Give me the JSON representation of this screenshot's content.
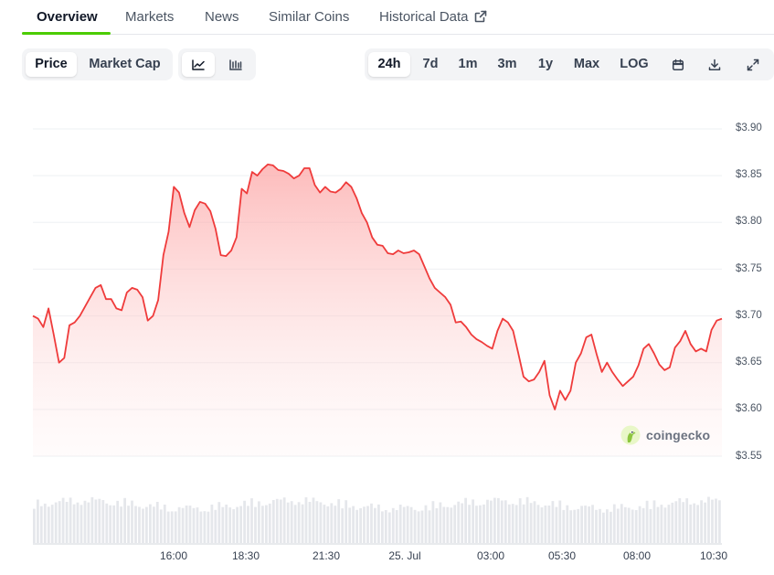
{
  "tabs": [
    {
      "label": "Overview",
      "active": true
    },
    {
      "label": "Markets"
    },
    {
      "label": "News"
    },
    {
      "label": "Similar Coins"
    },
    {
      "label": "Historical Data",
      "icon": "external-link-icon"
    }
  ],
  "metric_toggle": {
    "options": [
      "Price",
      "Market Cap"
    ],
    "selected": "Price"
  },
  "chart_style": {
    "options": [
      {
        "icon": "line-chart-icon",
        "selected": true
      },
      {
        "icon": "candlestick-icon"
      }
    ]
  },
  "time_ranges": {
    "options": [
      "24h",
      "7d",
      "1m",
      "3m",
      "1y",
      "Max",
      "LOG"
    ],
    "selected": "24h"
  },
  "tool_icons": [
    "calendar-icon",
    "download-icon",
    "expand-icon"
  ],
  "watermark": "coingecko",
  "colors": {
    "line": "#ef3b3b",
    "fill_top": "#fca5a5",
    "accent": "#4bcc00",
    "volume": "#e5e7eb"
  },
  "chart_data": {
    "type": "area",
    "title": "",
    "xlabel": "",
    "ylabel": "",
    "y_ticks": [
      3.9,
      3.85,
      3.8,
      3.75,
      3.7,
      3.65,
      3.6,
      3.55
    ],
    "y_tick_labels": [
      "$3.90",
      "$3.85",
      "$3.80",
      "$3.75",
      "$3.70",
      "$3.65",
      "$3.60",
      "$3.55"
    ],
    "ylim": [
      3.55,
      3.9
    ],
    "x_tick_labels": [
      "16:00",
      "18:30",
      "21:30",
      "25. Jul",
      "03:00",
      "05:30",
      "08:00",
      "10:30"
    ],
    "x_tick_positions_hours": [
      3.75,
      6.25,
      9.25,
      12.25,
      15.25,
      17.75,
      20.25,
      22.75
    ],
    "x_range_hours": [
      0,
      24
    ],
    "grid": true,
    "series": [
      {
        "values": [
          3.7,
          3.697,
          3.688,
          3.708,
          3.68,
          3.65,
          3.655,
          3.69,
          3.693,
          3.7,
          3.71,
          3.72,
          3.73,
          3.733,
          3.718,
          3.718,
          3.708,
          3.706,
          3.725,
          3.73,
          3.728,
          3.72,
          3.695,
          3.7,
          3.717,
          3.765,
          3.79,
          3.838,
          3.832,
          3.81,
          3.795,
          3.813,
          3.822,
          3.82,
          3.812,
          3.793,
          3.765,
          3.764,
          3.77,
          3.784,
          3.836,
          3.831,
          3.854,
          3.85,
          3.857,
          3.862,
          3.861,
          3.856,
          3.855,
          3.852,
          3.847,
          3.85,
          3.858,
          3.858,
          3.84,
          3.832,
          3.838,
          3.833,
          3.832,
          3.836,
          3.843,
          3.838,
          3.826,
          3.81,
          3.8,
          3.784,
          3.776,
          3.775,
          3.767,
          3.766,
          3.77,
          3.767,
          3.768,
          3.77,
          3.766,
          3.753,
          3.74,
          3.73,
          3.725,
          3.72,
          3.712,
          3.693,
          3.694,
          3.688,
          3.68,
          3.675,
          3.672,
          3.668,
          3.665,
          3.684,
          3.697,
          3.693,
          3.684,
          3.66,
          3.635,
          3.63,
          3.632,
          3.64,
          3.652,
          3.615,
          3.6,
          3.62,
          3.61,
          3.62,
          3.65,
          3.66,
          3.677,
          3.68,
          3.659,
          3.64,
          3.65,
          3.64,
          3.632,
          3.625,
          3.63,
          3.635,
          3.647,
          3.665,
          3.67,
          3.66,
          3.648,
          3.642,
          3.645,
          3.666,
          3.673,
          3.684,
          3.67,
          3.662,
          3.665,
          3.662,
          3.685,
          3.695,
          3.697
        ]
      }
    ],
    "volume_bars_relative": true
  }
}
